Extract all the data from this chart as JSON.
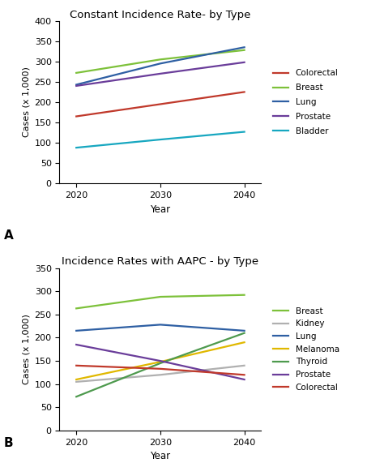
{
  "top": {
    "title": "Constant Incidence Rate- by Type",
    "xlabel": "Year",
    "ylabel": "Cases (x 1,000)",
    "ylim": [
      0,
      400
    ],
    "yticks": [
      0,
      50,
      100,
      150,
      200,
      250,
      300,
      350,
      400
    ],
    "years": [
      2020,
      2030,
      2040
    ],
    "label_A": "A",
    "series": [
      {
        "label": "Colorectal",
        "color": "#c0392b",
        "values": [
          165,
          195,
          225
        ]
      },
      {
        "label": "Breast",
        "color": "#7dc13a",
        "values": [
          272,
          305,
          328
        ]
      },
      {
        "label": "Lung",
        "color": "#2e5fa3",
        "values": [
          243,
          295,
          335
        ]
      },
      {
        "label": "Prostate",
        "color": "#6a3d9a",
        "values": [
          240,
          270,
          298
        ]
      },
      {
        "label": "Bladder",
        "color": "#17a7c0",
        "values": [
          88,
          108,
          127
        ]
      }
    ]
  },
  "bottom": {
    "title": "Incidence Rates with AAPC - by Type",
    "xlabel": "Year",
    "ylabel": "Cases (x 1,000)",
    "ylim": [
      0,
      350
    ],
    "yticks": [
      0,
      50,
      100,
      150,
      200,
      250,
      300,
      350
    ],
    "years": [
      2020,
      2030,
      2040
    ],
    "label_B": "B",
    "series": [
      {
        "label": "Breast",
        "color": "#7dc13a",
        "values": [
          263,
          288,
          292
        ]
      },
      {
        "label": "Kidney",
        "color": "#b0b0b0",
        "values": [
          105,
          120,
          140
        ]
      },
      {
        "label": "Lung",
        "color": "#2e5fa3",
        "values": [
          215,
          228,
          215
        ]
      },
      {
        "label": "Melanoma",
        "color": "#e0b800",
        "values": [
          110,
          148,
          190
        ]
      },
      {
        "label": "Thyroid",
        "color": "#4e9a4e",
        "values": [
          73,
          145,
          210
        ]
      },
      {
        "label": "Prostate",
        "color": "#6a3d9a",
        "values": [
          185,
          150,
          110
        ]
      },
      {
        "label": "Colorectal",
        "color": "#c0392b",
        "values": [
          140,
          133,
          120
        ]
      }
    ]
  },
  "background_color": "#ffffff",
  "fig_width": 4.74,
  "fig_height": 5.71,
  "dpi": 100
}
